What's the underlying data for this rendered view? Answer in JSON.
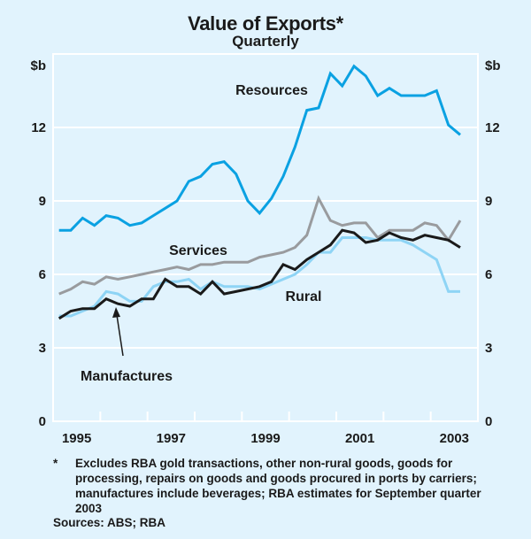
{
  "chart_data": {
    "type": "line",
    "title": "Value of Exports*",
    "subtitle": "Quarterly",
    "ylabel_left": "$b",
    "ylabel_right": "$b",
    "xlabel": "",
    "ylim": [
      0,
      15
    ],
    "yticks": [
      0,
      3,
      6,
      9,
      12
    ],
    "ytick_labels": [
      "0",
      "3",
      "6",
      "9",
      "12"
    ],
    "x_range": [
      "1995",
      "2003"
    ],
    "xtick_labels": [
      "1995",
      "1997",
      "1999",
      "2001",
      "2003"
    ],
    "grid": true,
    "frequency": "quarterly",
    "x": [
      "Mar-1995",
      "Jun-1995",
      "Sep-1995",
      "Dec-1995",
      "Mar-1996",
      "Jun-1996",
      "Sep-1996",
      "Dec-1996",
      "Mar-1997",
      "Jun-1997",
      "Sep-1997",
      "Dec-1997",
      "Mar-1998",
      "Jun-1998",
      "Sep-1998",
      "Dec-1998",
      "Mar-1999",
      "Jun-1999",
      "Sep-1999",
      "Dec-1999",
      "Mar-2000",
      "Jun-2000",
      "Sep-2000",
      "Dec-2000",
      "Mar-2001",
      "Jun-2001",
      "Sep-2001",
      "Dec-2001",
      "Mar-2002",
      "Jun-2002",
      "Sep-2002",
      "Dec-2002",
      "Mar-2003",
      "Jun-2003",
      "Sep-2003"
    ],
    "series": [
      {
        "name": "Resources",
        "color": "#0aa1e2",
        "label_position": "top-center",
        "values": [
          7.8,
          7.8,
          8.3,
          8.0,
          8.4,
          8.3,
          8.0,
          8.1,
          8.4,
          8.7,
          9.0,
          9.8,
          10.0,
          10.5,
          10.6,
          10.1,
          9.0,
          8.5,
          9.1,
          10.0,
          11.2,
          12.7,
          12.8,
          14.2,
          13.7,
          14.5,
          14.1,
          13.3,
          13.6,
          13.3,
          13.3,
          13.3,
          13.5,
          12.1,
          11.7
        ]
      },
      {
        "name": "Services",
        "color": "#999b9e",
        "label_position": "middle-left",
        "values": [
          5.2,
          5.4,
          5.7,
          5.6,
          5.9,
          5.8,
          5.9,
          6.0,
          6.1,
          6.2,
          6.3,
          6.2,
          6.4,
          6.4,
          6.5,
          6.5,
          6.5,
          6.7,
          6.8,
          6.9,
          7.1,
          7.6,
          9.1,
          8.2,
          8.0,
          8.1,
          8.1,
          7.5,
          7.8,
          7.8,
          7.8,
          8.1,
          8.0,
          7.4,
          8.2
        ]
      },
      {
        "name": "Rural",
        "color": "#1a1a1a",
        "label_position": "bottom-center",
        "values": [
          4.2,
          4.5,
          4.6,
          4.6,
          5.0,
          4.8,
          4.7,
          5.0,
          5.0,
          5.8,
          5.5,
          5.5,
          5.2,
          5.7,
          5.2,
          5.3,
          5.4,
          5.5,
          5.7,
          6.4,
          6.2,
          6.6,
          6.9,
          7.2,
          7.8,
          7.7,
          7.3,
          7.4,
          7.7,
          7.5,
          7.4,
          7.6,
          7.5,
          7.4,
          7.1
        ]
      },
      {
        "name": "Manufactures",
        "color": "#8ed4f5",
        "label_position": "bottom-left",
        "values": [
          4.3,
          4.3,
          4.5,
          4.7,
          5.3,
          5.2,
          4.9,
          4.9,
          5.5,
          5.7,
          5.7,
          5.8,
          5.4,
          5.7,
          5.5,
          5.5,
          5.5,
          5.4,
          5.6,
          5.8,
          6.0,
          6.4,
          6.9,
          6.9,
          7.5,
          7.5,
          7.5,
          7.4,
          7.4,
          7.4,
          7.2,
          6.9,
          6.6,
          5.3,
          5.3
        ]
      }
    ],
    "annotations": [
      {
        "text": "Manufactures",
        "arrow": true,
        "points_to": "Manufactures series near mid-1996"
      }
    ]
  },
  "footnote": {
    "marker": "*",
    "text": "Excludes RBA gold transactions, other non-rural goods, goods for processing, repairs on goods and goods procured in ports by carriers; manufactures include beverages; RBA estimates for September quarter 2003"
  },
  "sources": "Sources: ABS; RBA",
  "colors": {
    "background": "#e1f3fd",
    "gridline": "#ffffff",
    "text": "#1a1a1a"
  }
}
